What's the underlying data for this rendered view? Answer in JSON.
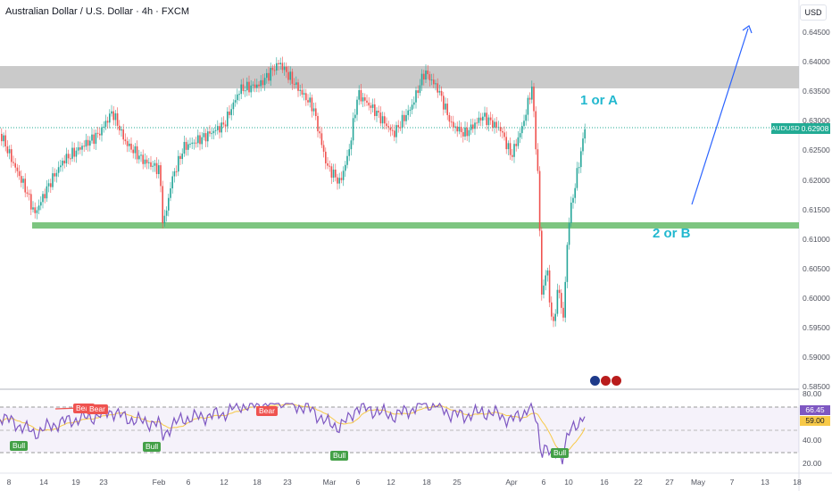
{
  "title": "Australian Dollar / U.S. Dollar · 4h · FXCM",
  "currency": "USD",
  "price_axis": [
    "0.64500",
    "0.64000",
    "0.63500",
    "0.63000",
    "0.62500",
    "0.62000",
    "0.61500",
    "0.61000",
    "0.60500",
    "0.60000",
    "0.59500",
    "0.59000",
    "0.58500"
  ],
  "rsi_axis": [
    "80.00",
    "40.00",
    "20.00"
  ],
  "x_axis": [
    "8",
    "14",
    "19",
    "23",
    "Feb",
    "6",
    "12",
    "18",
    "23",
    "Mar",
    "6",
    "12",
    "18",
    "25",
    "Apr",
    "6",
    "10",
    "16",
    "22",
    "27",
    "May",
    "7",
    "13",
    "18"
  ],
  "symbol": "AUDUSD",
  "last_price": "0.62908",
  "rsi_value": "66.45",
  "rsi_ma_value": "59.00",
  "annotations": {
    "label_a": "1 or A",
    "label_b": "2 or B"
  },
  "signals": {
    "bull": "Bull",
    "bear": "Bear"
  },
  "colors": {
    "up": "#26a69a",
    "down": "#ef5350",
    "resistance": "#bdbdbd",
    "support": "#66bb6a",
    "rsi": "#7e57c2",
    "rsi_ma": "#f7c948",
    "arrow": "#2962ff"
  }
}
